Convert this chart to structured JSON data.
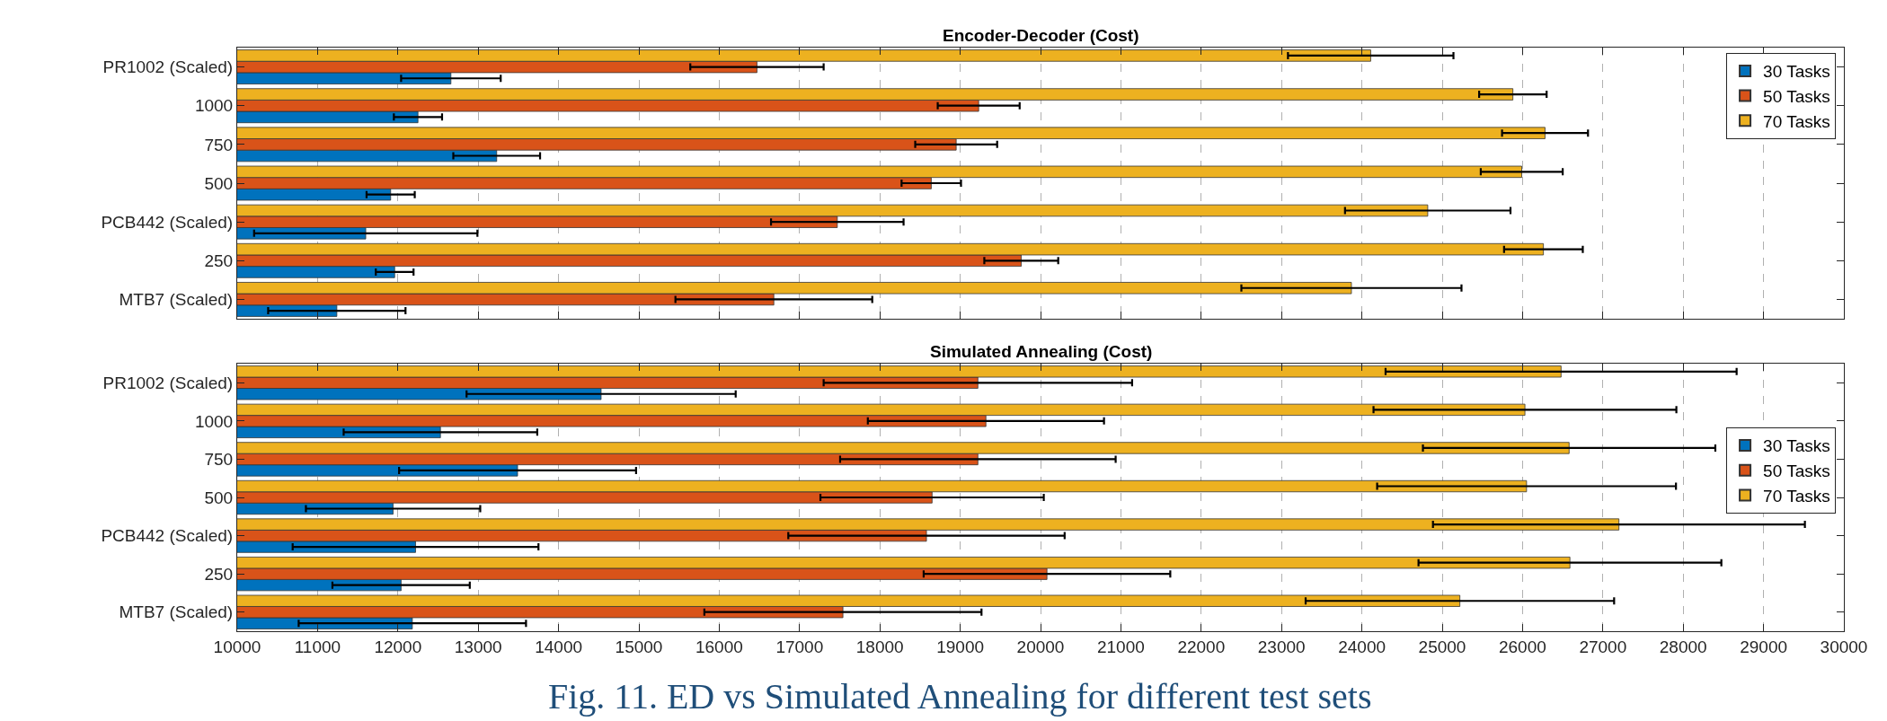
{
  "chart_data": [
    {
      "type": "bar",
      "orientation": "horizontal",
      "title": "Encoder-Decoder (Cost)",
      "categories": [
        "PR1002 (Scaled)",
        "1000",
        "750",
        "500",
        "PCB442 (Scaled)",
        "250",
        "MTB7 (Scaled)"
      ],
      "series": [
        {
          "name": "30 Tasks",
          "color": "#0072bd",
          "values": [
            12660,
            12250,
            13230,
            11910,
            11600,
            11960,
            11240
          ],
          "errors": [
            620,
            300,
            540,
            300,
            1390,
            235,
            855
          ]
        },
        {
          "name": "50 Tasks",
          "color": "#d95319",
          "values": [
            16470,
            19230,
            18950,
            18640,
            17470,
            19760,
            16680
          ],
          "errors": [
            830,
            510,
            510,
            370,
            825,
            460,
            1225
          ]
        },
        {
          "name": "70 Tasks",
          "color": "#edb120",
          "values": [
            24110,
            25880,
            26280,
            25990,
            24820,
            26260,
            23870
          ],
          "errors": [
            1030,
            420,
            535,
            510,
            1030,
            490,
            1370
          ]
        }
      ],
      "xlim": [
        10000,
        30000
      ],
      "xticks": [
        10000,
        11000,
        12000,
        13000,
        14000,
        15000,
        16000,
        17000,
        18000,
        19000,
        20000,
        21000,
        22000,
        23000,
        24000,
        25000,
        26000,
        27000,
        28000,
        29000,
        30000
      ],
      "tick_labels": "y",
      "grid": "x",
      "legend": "top right"
    },
    {
      "type": "bar",
      "orientation": "horizontal",
      "title": "Simulated Annealing (Cost)",
      "categories": [
        "PR1002 (Scaled)",
        "1000",
        "750",
        "500",
        "PCB442 (Scaled)",
        "250",
        "MTB7 (Scaled)"
      ],
      "series": [
        {
          "name": "30 Tasks",
          "color": "#0072bd",
          "values": [
            14530,
            12530,
            13490,
            11940,
            12220,
            12040,
            12180
          ],
          "errors": [
            1675,
            1205,
            1475,
            1085,
            1530,
            855,
            1415
          ]
        },
        {
          "name": "50 Tasks",
          "color": "#d95319",
          "values": [
            19220,
            19320,
            19220,
            18650,
            18580,
            20080,
            17540
          ],
          "errors": [
            1920,
            1470,
            1715,
            1390,
            1720,
            1535,
            1725
          ]
        },
        {
          "name": "70 Tasks",
          "color": "#edb120",
          "values": [
            26480,
            26030,
            26580,
            26050,
            27200,
            26590,
            25220
          ],
          "errors": [
            2185,
            1885,
            1820,
            1860,
            2315,
            1885,
            1920
          ]
        }
      ],
      "xlim": [
        10000,
        30000
      ],
      "xticks": [
        10000,
        11000,
        12000,
        13000,
        14000,
        15000,
        16000,
        17000,
        18000,
        19000,
        20000,
        21000,
        22000,
        23000,
        24000,
        25000,
        26000,
        27000,
        28000,
        29000,
        30000
      ],
      "grid": "x",
      "legend": "right",
      "annotations": [
        "Fig. 11. ED vs Simulated Annealing for different test sets"
      ]
    }
  ]
}
